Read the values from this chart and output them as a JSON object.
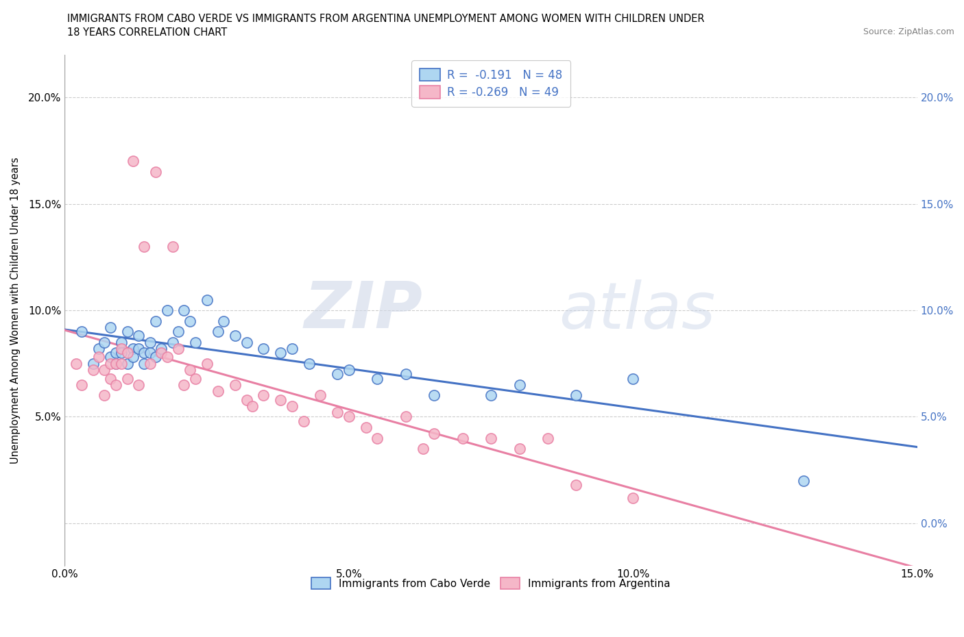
{
  "title_line1": "IMMIGRANTS FROM CABO VERDE VS IMMIGRANTS FROM ARGENTINA UNEMPLOYMENT AMONG WOMEN WITH CHILDREN UNDER",
  "title_line2": "18 YEARS CORRELATION CHART",
  "source": "Source: ZipAtlas.com",
  "ylabel": "Unemployment Among Women with Children Under 18 years",
  "xlabel": "",
  "xlim": [
    0.0,
    0.15
  ],
  "ylim": [
    -0.02,
    0.22
  ],
  "xticks": [
    0.0,
    0.05,
    0.1,
    0.15
  ],
  "xtick_labels": [
    "0.0%",
    "5.0%",
    "10.0%",
    "15.0%"
  ],
  "yticks": [
    0.0,
    0.05,
    0.1,
    0.15,
    0.2
  ],
  "cabo_verde_color": "#aed6f1",
  "argentina_color": "#f5b7c8",
  "cabo_verde_line_color": "#4472c4",
  "argentina_line_color": "#e87fa3",
  "cabo_verde_R": -0.191,
  "cabo_verde_N": 48,
  "argentina_R": -0.269,
  "argentina_N": 49,
  "watermark_zip": "ZIP",
  "watermark_atlas": "atlas",
  "cabo_verde_x": [
    0.003,
    0.005,
    0.006,
    0.007,
    0.008,
    0.008,
    0.009,
    0.009,
    0.01,
    0.01,
    0.011,
    0.011,
    0.012,
    0.012,
    0.013,
    0.013,
    0.014,
    0.014,
    0.015,
    0.015,
    0.016,
    0.016,
    0.017,
    0.018,
    0.019,
    0.02,
    0.021,
    0.022,
    0.023,
    0.025,
    0.027,
    0.028,
    0.03,
    0.032,
    0.035,
    0.038,
    0.04,
    0.043,
    0.048,
    0.05,
    0.055,
    0.06,
    0.065,
    0.075,
    0.08,
    0.09,
    0.1,
    0.13
  ],
  "cabo_verde_y": [
    0.09,
    0.075,
    0.082,
    0.085,
    0.092,
    0.078,
    0.08,
    0.075,
    0.085,
    0.08,
    0.09,
    0.075,
    0.082,
    0.078,
    0.088,
    0.082,
    0.08,
    0.075,
    0.085,
    0.08,
    0.095,
    0.078,
    0.082,
    0.1,
    0.085,
    0.09,
    0.1,
    0.095,
    0.085,
    0.105,
    0.09,
    0.095,
    0.088,
    0.085,
    0.082,
    0.08,
    0.082,
    0.075,
    0.07,
    0.072,
    0.068,
    0.07,
    0.06,
    0.06,
    0.065,
    0.06,
    0.068,
    0.02
  ],
  "argentina_x": [
    0.002,
    0.003,
    0.005,
    0.006,
    0.007,
    0.007,
    0.008,
    0.008,
    0.009,
    0.009,
    0.01,
    0.01,
    0.011,
    0.011,
    0.012,
    0.013,
    0.014,
    0.015,
    0.016,
    0.017,
    0.018,
    0.019,
    0.02,
    0.021,
    0.022,
    0.023,
    0.025,
    0.027,
    0.03,
    0.032,
    0.033,
    0.035,
    0.038,
    0.04,
    0.042,
    0.045,
    0.048,
    0.05,
    0.053,
    0.055,
    0.06,
    0.063,
    0.065,
    0.07,
    0.075,
    0.08,
    0.085,
    0.09,
    0.1
  ],
  "argentina_y": [
    0.075,
    0.065,
    0.072,
    0.078,
    0.06,
    0.072,
    0.068,
    0.075,
    0.075,
    0.065,
    0.082,
    0.075,
    0.08,
    0.068,
    0.17,
    0.065,
    0.13,
    0.075,
    0.165,
    0.08,
    0.078,
    0.13,
    0.082,
    0.065,
    0.072,
    0.068,
    0.075,
    0.062,
    0.065,
    0.058,
    0.055,
    0.06,
    0.058,
    0.055,
    0.048,
    0.06,
    0.052,
    0.05,
    0.045,
    0.04,
    0.05,
    0.035,
    0.042,
    0.04,
    0.04,
    0.035,
    0.04,
    0.018,
    0.012
  ]
}
